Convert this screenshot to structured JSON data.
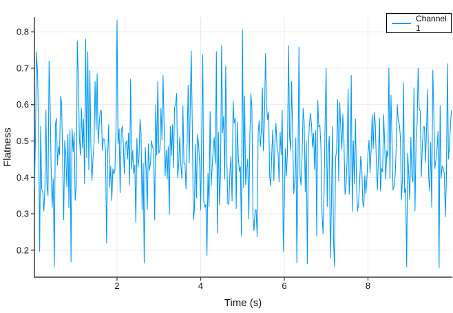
{
  "figure": {
    "background": "#FFFFFF",
    "title": ""
  },
  "chart_data": {
    "type": "line",
    "title": "",
    "xlabel": "Time (s)",
    "ylabel": "Flatness",
    "xlim": [
      0.025,
      10.0
    ],
    "ylim": [
      0.126,
      0.84
    ],
    "x_ticks": [
      2,
      4,
      6,
      8
    ],
    "y_ticks": [
      0.2,
      0.3,
      0.4,
      0.5,
      0.6,
      0.7,
      0.8
    ],
    "grid": true,
    "legend_position": "top-right",
    "series": [
      {
        "name": "Channel 1",
        "color": "#009AF9",
        "n_points": 400,
        "x_start": 0.025,
        "x_end": 10.0,
        "y_mean": 0.45,
        "y_std": 0.115,
        "y_clip_min": 0.155,
        "y_clip_max": 0.8,
        "y_observed_min": 0.152,
        "y_observed_max": 0.831,
        "noise_seed": 13,
        "anchor_points": [
          {
            "x": 0.05,
            "y": 0.5
          },
          {
            "x": 0.1,
            "y": 0.685
          },
          {
            "x": 0.15,
            "y": 0.197
          },
          {
            "x": 0.9,
            "y": 0.168
          },
          {
            "x": 1.05,
            "y": 0.775
          },
          {
            "x": 1.25,
            "y": 0.78
          },
          {
            "x": 1.3,
            "y": 0.745
          },
          {
            "x": 2.0,
            "y": 0.831
          },
          {
            "x": 3.1,
            "y": 0.68
          },
          {
            "x": 4.05,
            "y": 0.737
          },
          {
            "x": 4.15,
            "y": 0.185
          },
          {
            "x": 4.5,
            "y": 0.762
          },
          {
            "x": 5.0,
            "y": 0.806
          },
          {
            "x": 5.55,
            "y": 0.74
          },
          {
            "x": 6.1,
            "y": 0.762
          },
          {
            "x": 6.3,
            "y": 0.165
          },
          {
            "x": 6.55,
            "y": 0.163
          },
          {
            "x": 7.0,
            "y": 0.7
          },
          {
            "x": 7.2,
            "y": 0.155
          },
          {
            "x": 7.6,
            "y": 0.68
          },
          {
            "x": 8.5,
            "y": 0.7
          },
          {
            "x": 8.85,
            "y": 0.66
          },
          {
            "x": 9.2,
            "y": 0.7
          },
          {
            "x": 9.55,
            "y": 0.695
          },
          {
            "x": 9.7,
            "y": 0.152
          },
          {
            "x": 9.9,
            "y": 0.712
          }
        ]
      }
    ]
  },
  "style": {
    "line_color": "#009AF9",
    "grid_color": "#E9E9EB",
    "axis_color": "#3B3B3B",
    "tick_label_color": "#141414",
    "legend_border_color": "#000000",
    "legend_background": "#FFFFFF"
  }
}
